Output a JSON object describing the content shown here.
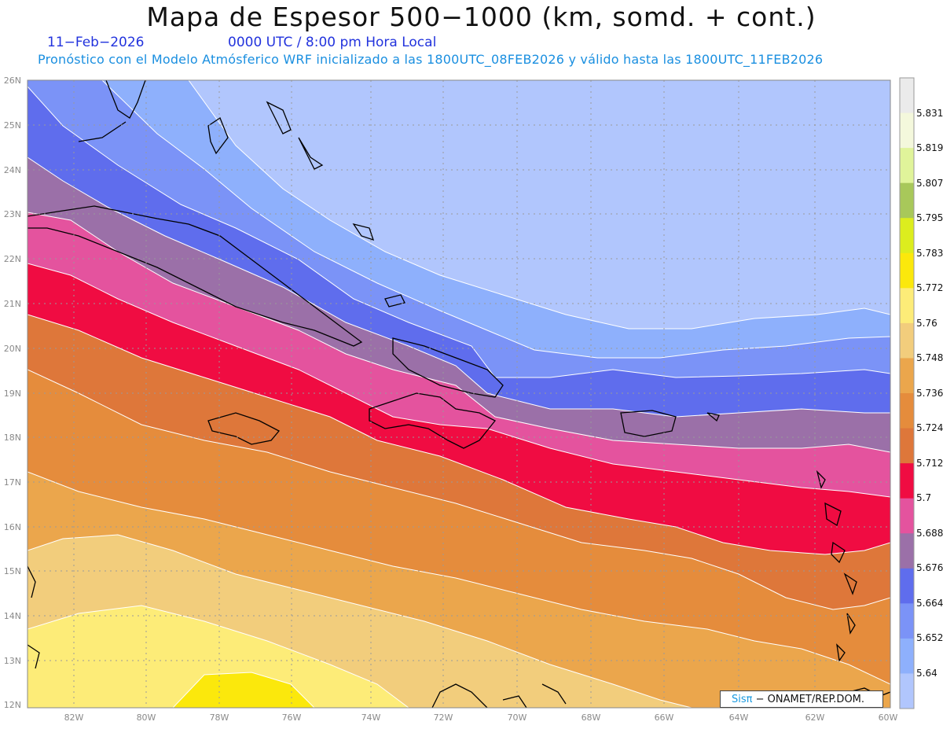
{
  "header": {
    "title": "Mapa de Espesor 500−1000 (km, somd. + cont.)",
    "date": "11−Feb−2026",
    "time": "0000 UTC / 8:00 pm Hora Local",
    "description": "Pronóstico con el Modelo Atmósferico WRF inicializado a las 1800UTC_08FEB2026 y válido hasta las  1800UTC_11FEB2026"
  },
  "map": {
    "lat_labels": [
      "26N",
      "25N",
      "24N",
      "23N",
      "22N",
      "21N",
      "20N",
      "19N",
      "18N",
      "17N",
      "16N",
      "15N",
      "14N",
      "13N",
      "12N"
    ],
    "lon_labels": [
      "82W",
      "80W",
      "78W",
      "76W",
      "74W",
      "72W",
      "70W",
      "68W",
      "66W",
      "64W",
      "62W",
      "60W"
    ]
  },
  "colorbar": {
    "labels": [
      "5.831",
      "5.819",
      "5.807",
      "5.795",
      "5.783",
      "5.772",
      "5.76",
      "5.748",
      "5.736",
      "5.724",
      "5.712",
      "5.7",
      "5.688",
      "5.676",
      "5.664",
      "5.652",
      "5.64"
    ],
    "colors": [
      "#ebebeb",
      "#f4f8dc",
      "#e0f49a",
      "#a8c85a",
      "#dced1e",
      "#fbe80c",
      "#fdec78",
      "#f2cd7c",
      "#eba64c",
      "#e58c3c",
      "#de773a",
      "#f00c42",
      "#e4539e",
      "#9b70a8",
      "#5f6ded",
      "#7b93f7",
      "#8eb0fc",
      "#b1c6fd"
    ]
  },
  "credit": {
    "sis": "Sisπ",
    "text": "− ONAMET/REP.DOM."
  }
}
